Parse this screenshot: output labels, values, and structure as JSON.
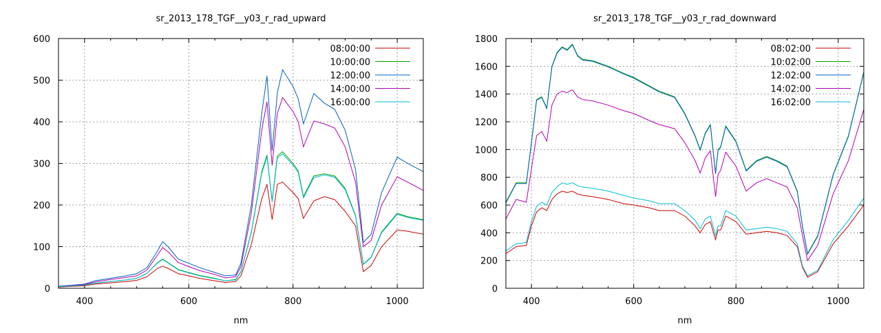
{
  "chart_data": [
    {
      "type": "line",
      "title": "sr_2013_178_TGF__y03_r_rad_upward",
      "xlabel": "nm",
      "ylabel": "",
      "xlim": [
        350,
        1050
      ],
      "ylim": [
        0,
        600
      ],
      "xticks": [
        400,
        600,
        800,
        1000
      ],
      "yticks": [
        0,
        100,
        200,
        300,
        400,
        500,
        600
      ],
      "grid": true,
      "legend_position": "top-right",
      "series": [
        {
          "name": "08:00:00",
          "color": "#cc0000",
          "x": [
            350,
            380,
            400,
            420,
            450,
            480,
            500,
            520,
            540,
            550,
            560,
            580,
            600,
            620,
            650,
            670,
            690,
            700,
            720,
            740,
            750,
            760,
            770,
            780,
            800,
            810,
            820,
            840,
            860,
            880,
            900,
            920,
            935,
            950,
            970,
            1000,
            1020,
            1050
          ],
          "y": [
            3,
            5,
            6,
            10,
            13,
            16,
            19,
            28,
            48,
            53,
            48,
            35,
            30,
            24,
            18,
            14,
            16,
            30,
            105,
            215,
            250,
            165,
            250,
            255,
            230,
            215,
            168,
            210,
            220,
            213,
            185,
            150,
            40,
            55,
            100,
            140,
            137,
            130
          ]
        },
        {
          "name": "10:00:00",
          "color": "#00a000",
          "x": [
            350,
            380,
            400,
            420,
            450,
            480,
            500,
            520,
            540,
            550,
            560,
            580,
            600,
            620,
            650,
            670,
            690,
            700,
            720,
            740,
            750,
            760,
            770,
            780,
            800,
            810,
            820,
            840,
            860,
            880,
            900,
            920,
            935,
            950,
            970,
            1000,
            1020,
            1050
          ],
          "y": [
            4,
            6,
            8,
            12,
            16,
            20,
            24,
            36,
            62,
            70,
            62,
            45,
            38,
            31,
            24,
            18,
            21,
            40,
            135,
            280,
            320,
            210,
            318,
            328,
            300,
            282,
            220,
            270,
            275,
            270,
            240,
            175,
            58,
            75,
            135,
            180,
            172,
            165
          ]
        },
        {
          "name": "12:00:00",
          "color": "#0060c0",
          "x": [
            350,
            380,
            400,
            420,
            450,
            480,
            500,
            520,
            540,
            550,
            560,
            580,
            600,
            620,
            650,
            670,
            690,
            700,
            720,
            740,
            750,
            760,
            770,
            780,
            800,
            810,
            820,
            840,
            860,
            880,
            900,
            920,
            935,
            950,
            970,
            1000,
            1020,
            1050
          ],
          "y": [
            5,
            8,
            10,
            18,
            24,
            30,
            35,
            50,
            90,
            112,
            100,
            70,
            60,
            50,
            38,
            30,
            32,
            60,
            200,
            420,
            510,
            330,
            470,
            525,
            485,
            455,
            395,
            468,
            445,
            430,
            380,
            285,
            110,
            130,
            230,
            315,
            300,
            280
          ]
        },
        {
          "name": "14:00:00",
          "color": "#b000b0",
          "x": [
            350,
            380,
            400,
            420,
            450,
            480,
            500,
            520,
            540,
            550,
            560,
            580,
            600,
            620,
            650,
            670,
            690,
            700,
            720,
            740,
            750,
            760,
            770,
            780,
            800,
            810,
            820,
            840,
            860,
            880,
            900,
            920,
            935,
            950,
            970,
            1000,
            1020,
            1050
          ],
          "y": [
            4,
            7,
            9,
            15,
            21,
            26,
            30,
            44,
            80,
            98,
            88,
            62,
            52,
            43,
            33,
            25,
            28,
            52,
            180,
            380,
            448,
            295,
            420,
            458,
            425,
            400,
            340,
            402,
            395,
            385,
            340,
            255,
            100,
            115,
            200,
            268,
            255,
            235
          ]
        },
        {
          "name": "16:00:00",
          "color": "#00bcd4",
          "x": [
            350,
            380,
            400,
            420,
            450,
            480,
            500,
            520,
            540,
            550,
            560,
            580,
            600,
            620,
            650,
            670,
            690,
            700,
            720,
            740,
            750,
            760,
            770,
            780,
            800,
            810,
            820,
            840,
            860,
            880,
            900,
            920,
            935,
            950,
            970,
            1000,
            1020,
            1050
          ],
          "y": [
            4,
            6,
            8,
            12,
            16,
            20,
            24,
            36,
            61,
            69,
            61,
            44,
            37,
            30,
            23,
            18,
            20,
            39,
            133,
            276,
            316,
            207,
            313,
            323,
            296,
            278,
            217,
            266,
            272,
            267,
            237,
            173,
            57,
            74,
            133,
            178,
            170,
            163
          ]
        }
      ]
    },
    {
      "type": "line",
      "title": "sr_2013_178_TGF__y03_r_rad_downward",
      "xlabel": "nm",
      "ylabel": "",
      "xlim": [
        350,
        1050
      ],
      "ylim": [
        0,
        1800
      ],
      "xticks": [
        400,
        600,
        800,
        1000
      ],
      "yticks": [
        0,
        200,
        400,
        600,
        800,
        1000,
        1200,
        1400,
        1600,
        1800
      ],
      "grid": true,
      "legend_position": "top-right",
      "series": [
        {
          "name": "08:02:00",
          "color": "#cc0000",
          "x": [
            350,
            370,
            390,
            400,
            410,
            420,
            430,
            440,
            450,
            460,
            470,
            480,
            490,
            500,
            520,
            550,
            580,
            600,
            630,
            650,
            680,
            700,
            720,
            730,
            740,
            750,
            760,
            765,
            770,
            780,
            800,
            820,
            840,
            860,
            880,
            900,
            920,
            930,
            940,
            960,
            990,
            1020,
            1050
          ],
          "y": [
            250,
            300,
            310,
            450,
            550,
            580,
            560,
            640,
            680,
            700,
            690,
            700,
            680,
            670,
            660,
            640,
            610,
            600,
            580,
            560,
            560,
            520,
            450,
            400,
            460,
            480,
            350,
            420,
            420,
            520,
            480,
            390,
            400,
            410,
            400,
            380,
            300,
            150,
            80,
            120,
            320,
            450,
            600
          ]
        },
        {
          "name": "10:02:00",
          "color": "#00a000",
          "x": [
            350,
            370,
            390,
            400,
            410,
            420,
            430,
            440,
            450,
            460,
            470,
            480,
            490,
            500,
            520,
            550,
            580,
            600,
            630,
            650,
            680,
            700,
            720,
            730,
            740,
            750,
            760,
            765,
            770,
            780,
            800,
            820,
            840,
            860,
            880,
            900,
            920,
            930,
            940,
            960,
            990,
            1020,
            1050
          ],
          "y": [
            620,
            760,
            760,
            1050,
            1360,
            1380,
            1300,
            1600,
            1700,
            1740,
            1720,
            1760,
            1680,
            1650,
            1640,
            1600,
            1550,
            1520,
            1460,
            1420,
            1380,
            1260,
            1100,
            1000,
            1120,
            1180,
            830,
            1000,
            1020,
            1170,
            1060,
            850,
            920,
            950,
            920,
            880,
            700,
            450,
            250,
            380,
            820,
            1100,
            1560
          ]
        },
        {
          "name": "12:02:00",
          "color": "#0060c0",
          "x": [
            350,
            370,
            390,
            400,
            410,
            420,
            430,
            440,
            450,
            460,
            470,
            480,
            490,
            500,
            520,
            550,
            580,
            600,
            630,
            650,
            680,
            700,
            720,
            730,
            740,
            750,
            760,
            765,
            770,
            780,
            800,
            820,
            840,
            860,
            880,
            900,
            920,
            930,
            940,
            960,
            990,
            1020,
            1050
          ],
          "y": [
            615,
            755,
            755,
            1045,
            1355,
            1375,
            1295,
            1595,
            1695,
            1735,
            1715,
            1755,
            1675,
            1645,
            1635,
            1595,
            1545,
            1515,
            1455,
            1415,
            1375,
            1255,
            1095,
            995,
            1115,
            1175,
            825,
            995,
            1015,
            1165,
            1055,
            845,
            915,
            945,
            915,
            875,
            695,
            445,
            245,
            375,
            815,
            1095,
            1555
          ]
        },
        {
          "name": "14:02:00",
          "color": "#b000b0",
          "x": [
            350,
            370,
            390,
            400,
            410,
            420,
            430,
            440,
            450,
            460,
            470,
            480,
            490,
            500,
            520,
            550,
            580,
            600,
            630,
            650,
            680,
            700,
            720,
            730,
            740,
            750,
            760,
            765,
            770,
            780,
            800,
            820,
            840,
            860,
            880,
            900,
            920,
            930,
            940,
            960,
            990,
            1020,
            1050
          ],
          "y": [
            500,
            640,
            620,
            860,
            1100,
            1130,
            1060,
            1320,
            1400,
            1420,
            1410,
            1430,
            1380,
            1360,
            1350,
            1320,
            1280,
            1260,
            1210,
            1180,
            1150,
            1050,
            920,
            830,
            940,
            990,
            660,
            820,
            850,
            980,
            880,
            700,
            760,
            790,
            760,
            730,
            580,
            380,
            200,
            310,
            680,
            920,
            1290
          ]
        },
        {
          "name": "16:02:00",
          "color": "#00bcd4",
          "x": [
            350,
            370,
            390,
            400,
            410,
            420,
            430,
            440,
            450,
            460,
            470,
            480,
            490,
            500,
            520,
            550,
            580,
            600,
            630,
            650,
            680,
            700,
            720,
            730,
            740,
            750,
            760,
            765,
            770,
            780,
            800,
            820,
            840,
            860,
            880,
            900,
            920,
            930,
            940,
            960,
            990,
            1020,
            1050
          ],
          "y": [
            270,
            320,
            330,
            480,
            590,
            620,
            600,
            690,
            730,
            760,
            750,
            760,
            740,
            730,
            720,
            700,
            670,
            650,
            630,
            610,
            610,
            560,
            490,
            430,
            500,
            520,
            380,
            450,
            450,
            560,
            520,
            420,
            430,
            440,
            430,
            410,
            320,
            160,
            90,
            130,
            350,
            490,
            650
          ]
        }
      ]
    }
  ]
}
